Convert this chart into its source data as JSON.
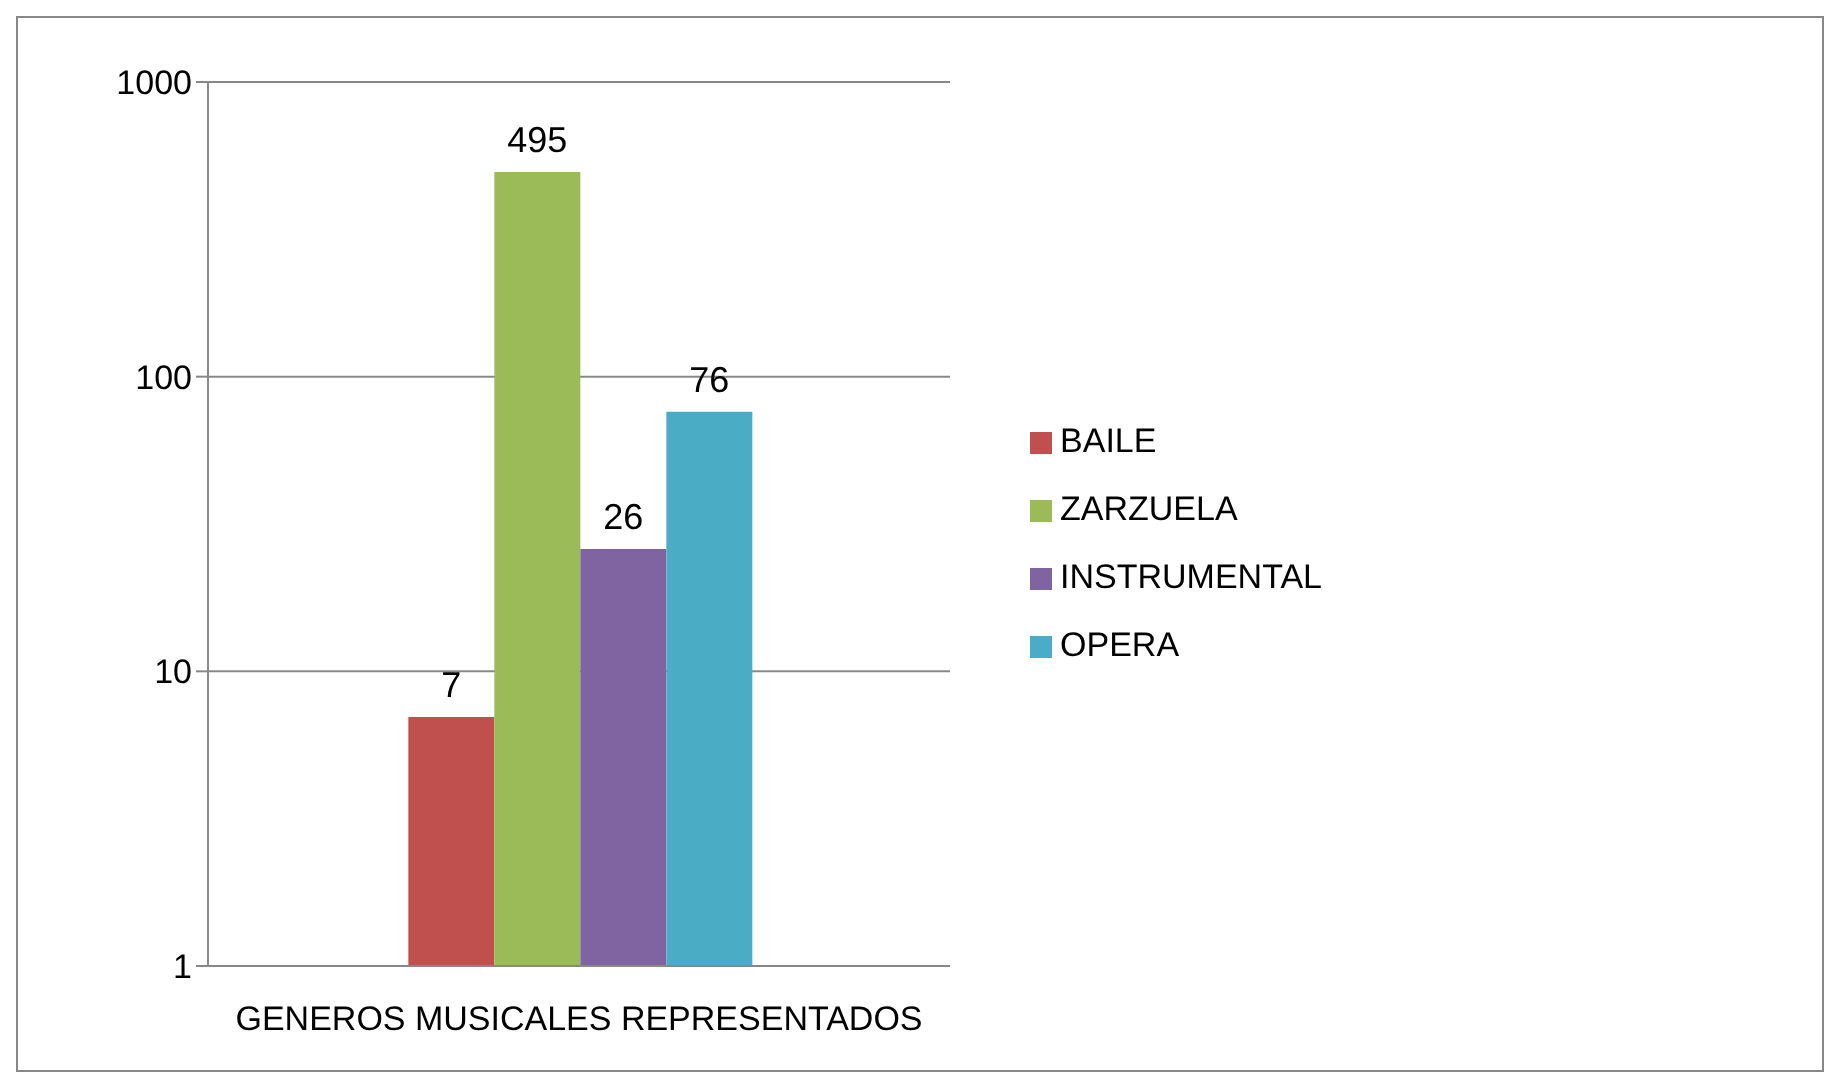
{
  "chart_data": {
    "type": "bar",
    "categories": [
      "GENEROS MUSICALES REPRESENTADOS"
    ],
    "series": [
      {
        "name": "BAILE",
        "color": "#c0504d",
        "values": [
          7
        ]
      },
      {
        "name": "ZARZUELA",
        "color": "#9bbb59",
        "values": [
          495
        ]
      },
      {
        "name": "INSTRUMENTAL",
        "color": "#8064a2",
        "values": [
          26
        ]
      },
      {
        "name": "OPERA",
        "color": "#4bacc6",
        "values": [
          76
        ]
      }
    ],
    "log": "y",
    "ylim": [
      1,
      1000
    ],
    "yticks": [
      1,
      10,
      100,
      1000
    ],
    "grid": "y",
    "legend": "right",
    "data_labels": true
  }
}
